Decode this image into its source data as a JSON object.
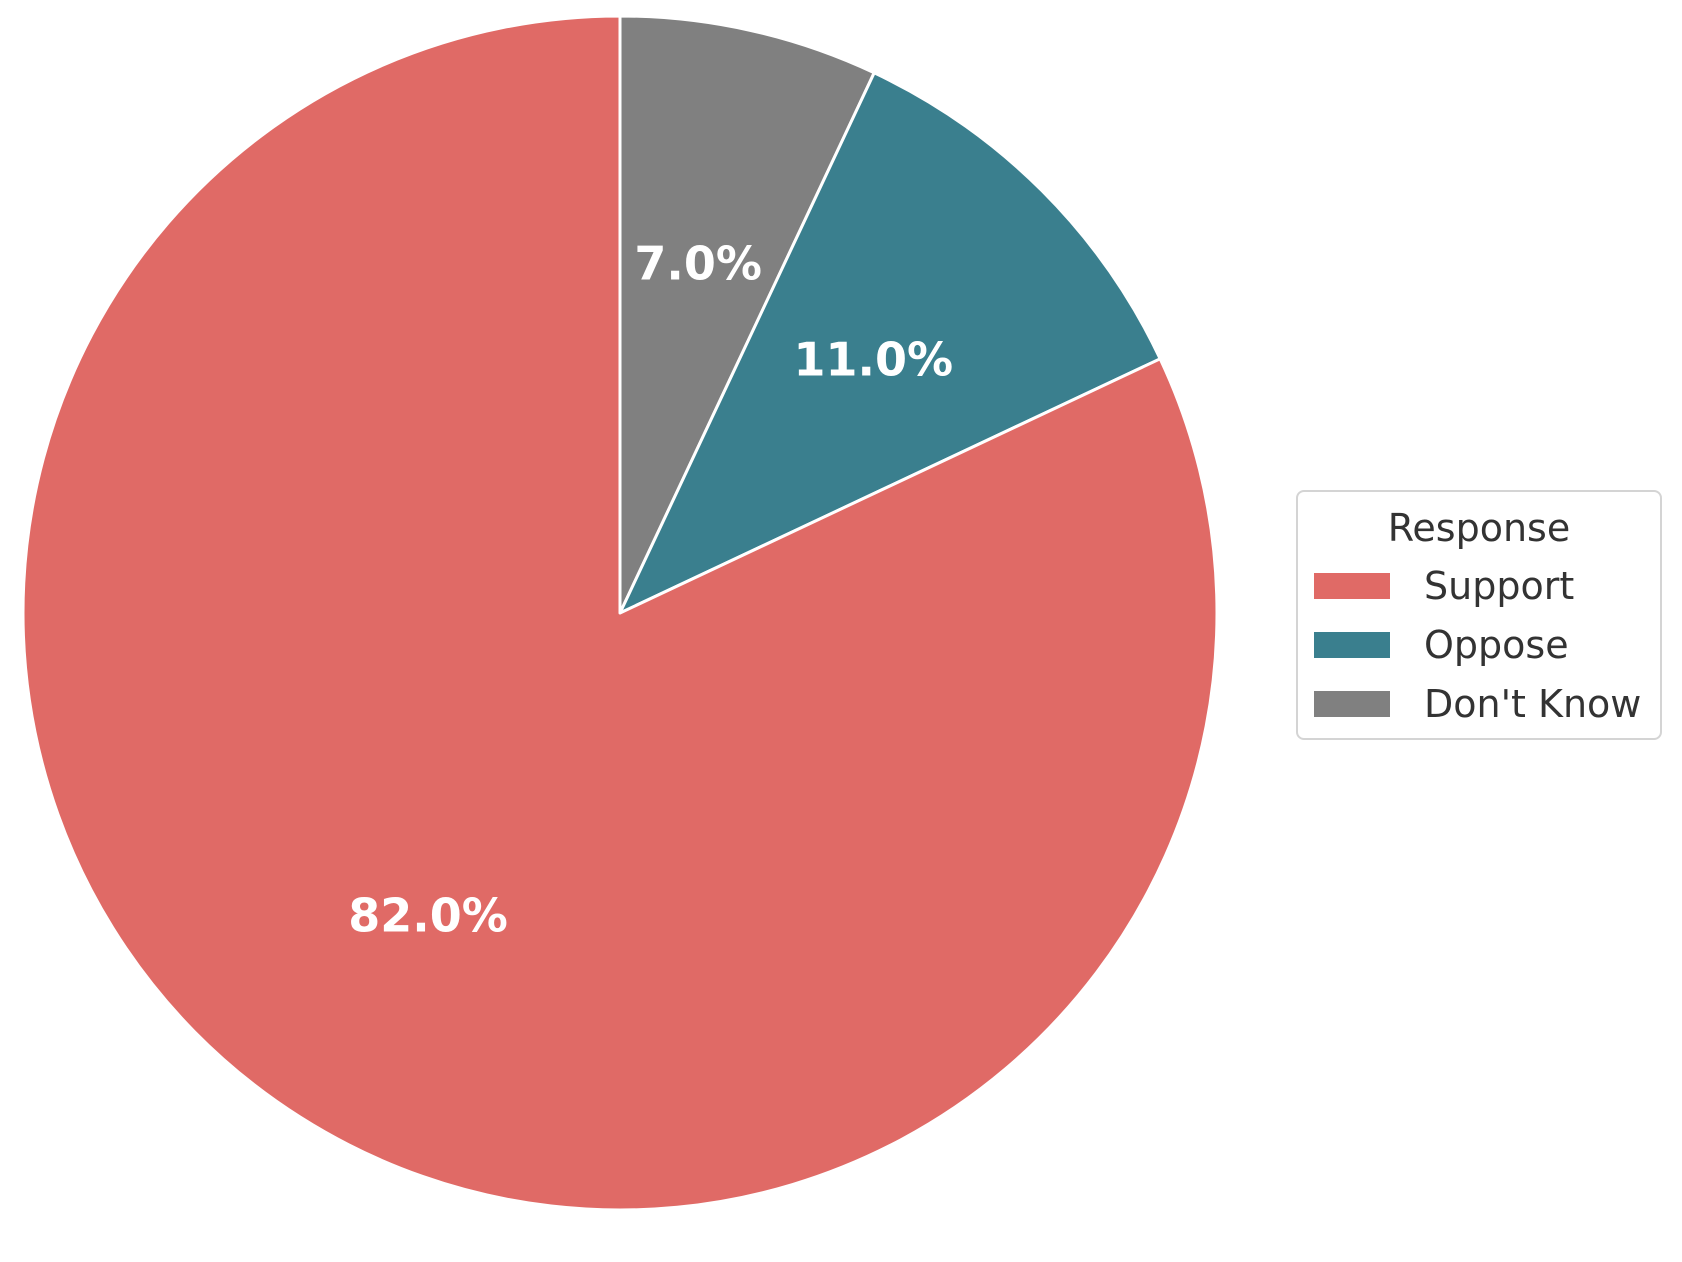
{
  "chart_data": {
    "type": "pie",
    "title": "",
    "start_angle": "top",
    "direction": "clockwise",
    "slices": [
      {
        "label": "Don't Know",
        "value": 7.0,
        "display": "7.0%",
        "color": "#808080"
      },
      {
        "label": "Oppose",
        "value": 11.0,
        "display": "11.0%",
        "color": "#3a7f8e"
      },
      {
        "label": "Support",
        "value": 82.0,
        "display": "82.0%",
        "color": "#e06a66"
      }
    ],
    "label_color": "#ffffff",
    "legend": {
      "title": "Response",
      "placement": "right",
      "entries": [
        {
          "label": "Support",
          "color": "#e06a66"
        },
        {
          "label": "Oppose",
          "color": "#3a7f8e"
        },
        {
          "label": "Don't Know",
          "color": "#808080"
        }
      ]
    }
  }
}
